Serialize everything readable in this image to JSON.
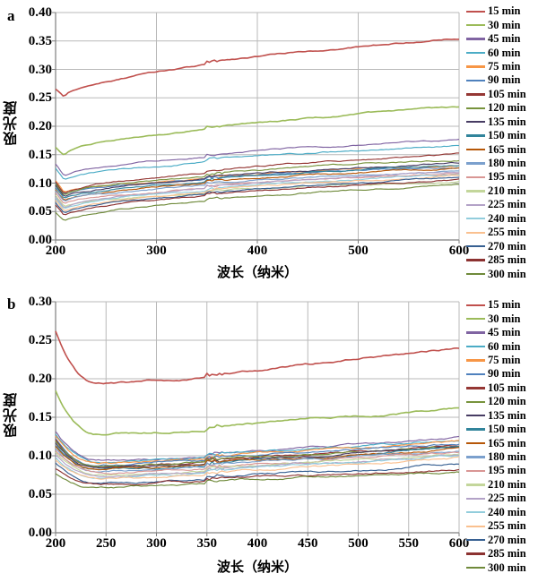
{
  "chart_data": [
    {
      "panel_label": "a",
      "type": "line",
      "xlabel": "波长（纳米）",
      "ylabel": "吸光度",
      "xlim": [
        200,
        600
      ],
      "ylim": [
        0,
        0.4
      ],
      "x_ticks": [
        200,
        300,
        400,
        500,
        600
      ],
      "x_gridlines": [
        300,
        400,
        500,
        600
      ],
      "y_ticks": [
        "0.40",
        "0.35",
        "0.30",
        "0.25",
        "0.20",
        "0.15",
        "0.10",
        "0.05",
        "0.00"
      ],
      "grid": true,
      "legend_position": "right",
      "shape": {
        "dip_x": 209,
        "drop_pow": 1.0,
        "rise_pow": 0.55,
        "step_x": 350,
        "step": 0.004
      },
      "series": [
        {
          "name": "15 min",
          "color": "#C0504D",
          "abs_200": 0.265,
          "abs_min": 0.251,
          "abs_600": 0.355
        },
        {
          "name": "30 min",
          "color": "#9BBB59",
          "abs_200": 0.163,
          "abs_min": 0.148,
          "abs_600": 0.232
        },
        {
          "name": "45 min",
          "color": "#8064A2",
          "abs_200": 0.134,
          "abs_min": 0.112,
          "abs_600": 0.177
        },
        {
          "name": "60 min",
          "color": "#4BACC6",
          "abs_200": 0.127,
          "abs_min": 0.105,
          "abs_600": 0.166
        },
        {
          "name": "75 min",
          "color": "#F79646",
          "abs_200": 0.104,
          "abs_min": 0.082,
          "abs_600": 0.13
        },
        {
          "name": "90 min",
          "color": "#4F81BD",
          "abs_200": 0.1,
          "abs_min": 0.079,
          "abs_600": 0.128
        },
        {
          "name": "105 min",
          "color": "#953734",
          "abs_200": 0.103,
          "abs_min": 0.081,
          "abs_600": 0.151
        },
        {
          "name": "120 min",
          "color": "#77933C",
          "abs_200": 0.098,
          "abs_min": 0.077,
          "abs_600": 0.141
        },
        {
          "name": "135 min",
          "color": "#473C63",
          "abs_200": 0.096,
          "abs_min": 0.075,
          "abs_600": 0.135
        },
        {
          "name": "150 min",
          "color": "#31849B",
          "abs_200": 0.092,
          "abs_min": 0.072,
          "abs_600": 0.131
        },
        {
          "name": "165 min",
          "color": "#B65708",
          "abs_200": 0.089,
          "abs_min": 0.069,
          "abs_600": 0.126
        },
        {
          "name": "180 min",
          "color": "#7BA0CD",
          "abs_200": 0.086,
          "abs_min": 0.066,
          "abs_600": 0.122
        },
        {
          "name": "195 min",
          "color": "#D99694",
          "abs_200": 0.083,
          "abs_min": 0.063,
          "abs_600": 0.117
        },
        {
          "name": "210 min",
          "color": "#C3D69B",
          "abs_200": 0.079,
          "abs_min": 0.059,
          "abs_600": 0.104
        },
        {
          "name": "225 min",
          "color": "#B3A2C7",
          "abs_200": 0.076,
          "abs_min": 0.056,
          "abs_600": 0.12
        },
        {
          "name": "240 min",
          "color": "#92CDDC",
          "abs_200": 0.073,
          "abs_min": 0.053,
          "abs_600": 0.116
        },
        {
          "name": "255 min",
          "color": "#FAC08F",
          "abs_200": 0.07,
          "abs_min": 0.05,
          "abs_600": 0.113
        },
        {
          "name": "270 min",
          "color": "#376092",
          "abs_200": 0.066,
          "abs_min": 0.046,
          "abs_600": 0.11
        },
        {
          "name": "285 min",
          "color": "#8C3231",
          "abs_200": 0.062,
          "abs_min": 0.042,
          "abs_600": 0.107
        },
        {
          "name": "300 min",
          "color": "#6F8A3A",
          "abs_200": 0.048,
          "abs_min": 0.032,
          "abs_600": 0.098
        }
      ]
    },
    {
      "panel_label": "b",
      "type": "line",
      "xlabel": "波长（纳米）",
      "ylabel": "吸光度",
      "xlim": [
        200,
        600
      ],
      "ylim": [
        0,
        0.3
      ],
      "x_ticks": [
        200,
        250,
        300,
        350,
        400,
        450,
        500,
        550,
        600
      ],
      "x_gridlines": [
        250,
        300,
        350,
        400,
        450,
        500,
        550,
        600
      ],
      "y_ticks": [
        "0.30",
        "0.25",
        "0.20",
        "0.15",
        "0.10",
        "0.05",
        "0.00"
      ],
      "grid": true,
      "legend_position": "right",
      "shape": {
        "dip_x": 243,
        "drop_pow": 2.2,
        "rise_pow": 1.3,
        "step_x": 350,
        "step": 0.004
      },
      "series": [
        {
          "name": "15 min",
          "color": "#C0504D",
          "abs_200": 0.262,
          "abs_min": 0.193,
          "abs_600": 0.24
        },
        {
          "name": "30 min",
          "color": "#9BBB59",
          "abs_200": 0.185,
          "abs_min": 0.128,
          "abs_600": 0.161
        },
        {
          "name": "45 min",
          "color": "#8064A2",
          "abs_200": 0.131,
          "abs_min": 0.093,
          "abs_600": 0.123
        },
        {
          "name": "60 min",
          "color": "#4BACC6",
          "abs_200": 0.128,
          "abs_min": 0.091,
          "abs_600": 0.12
        },
        {
          "name": "75 min",
          "color": "#F79646",
          "abs_200": 0.126,
          "abs_min": 0.09,
          "abs_600": 0.118
        },
        {
          "name": "90 min",
          "color": "#4F81BD",
          "abs_200": 0.123,
          "abs_min": 0.088,
          "abs_600": 0.116
        },
        {
          "name": "105 min",
          "color": "#953734",
          "abs_200": 0.121,
          "abs_min": 0.087,
          "abs_600": 0.114
        },
        {
          "name": "120 min",
          "color": "#77933C",
          "abs_200": 0.119,
          "abs_min": 0.086,
          "abs_600": 0.113
        },
        {
          "name": "135 min",
          "color": "#473C63",
          "abs_200": 0.117,
          "abs_min": 0.085,
          "abs_600": 0.112
        },
        {
          "name": "150 min",
          "color": "#31849B",
          "abs_200": 0.114,
          "abs_min": 0.083,
          "abs_600": 0.11
        },
        {
          "name": "165 min",
          "color": "#B65708",
          "abs_200": 0.112,
          "abs_min": 0.082,
          "abs_600": 0.109
        },
        {
          "name": "180 min",
          "color": "#7BA0CD",
          "abs_200": 0.109,
          "abs_min": 0.08,
          "abs_600": 0.107
        },
        {
          "name": "195 min",
          "color": "#D99694",
          "abs_200": 0.107,
          "abs_min": 0.078,
          "abs_600": 0.105
        },
        {
          "name": "210 min",
          "color": "#C3D69B",
          "abs_200": 0.104,
          "abs_min": 0.076,
          "abs_600": 0.103
        },
        {
          "name": "225 min",
          "color": "#B3A2C7",
          "abs_200": 0.101,
          "abs_min": 0.074,
          "abs_600": 0.101
        },
        {
          "name": "240 min",
          "color": "#92CDDC",
          "abs_200": 0.098,
          "abs_min": 0.072,
          "abs_600": 0.098
        },
        {
          "name": "255 min",
          "color": "#FAC08F",
          "abs_200": 0.095,
          "abs_min": 0.07,
          "abs_600": 0.096
        },
        {
          "name": "270 min",
          "color": "#376092",
          "abs_200": 0.09,
          "abs_min": 0.066,
          "abs_600": 0.089
        },
        {
          "name": "285 min",
          "color": "#8C3231",
          "abs_200": 0.083,
          "abs_min": 0.063,
          "abs_600": 0.083
        },
        {
          "name": "300 min",
          "color": "#6F8A3A",
          "abs_200": 0.077,
          "abs_min": 0.059,
          "abs_600": 0.079
        }
      ]
    }
  ]
}
